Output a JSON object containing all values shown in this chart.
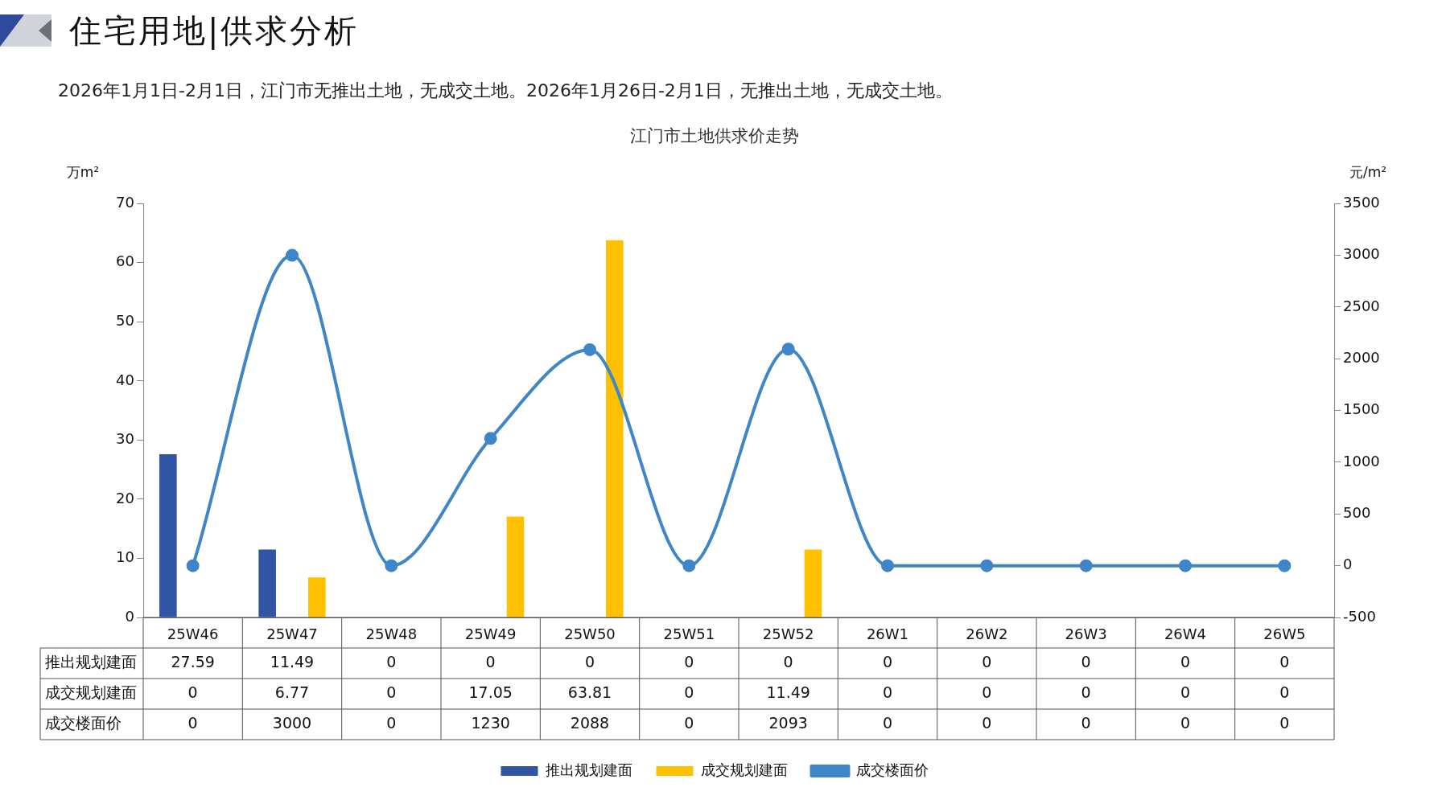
{
  "chart_data": {
    "type": "bar",
    "title": "住宅用地|供求分析",
    "subtitle": "2026年1月1日-2月1日，江门市无推出土地，无成交土地。2026年1月26日-2月1日，无推出土地，无成交土地。",
    "annotations": [
      "江门市土地供求价走势"
    ],
    "ylabel": "万m²",
    "y2label": "元/m²",
    "categories": [
      "25W46",
      "25W47",
      "25W48",
      "25W49",
      "25W50",
      "25W51",
      "25W52",
      "26W1",
      "26W2",
      "26W3",
      "26W4",
      "26W5"
    ],
    "series": [
      {
        "name": "推出规划建面",
        "color": "#2f55a4",
        "values": [
          27.59,
          11.49,
          0,
          0,
          0,
          0,
          0,
          0,
          0,
          0,
          0,
          0
        ]
      },
      {
        "name": "成交规划建面",
        "color": "#ffc000",
        "values": [
          0,
          6.77,
          0,
          17.05,
          63.81,
          0,
          11.49,
          0,
          0,
          0,
          0,
          0
        ]
      },
      {
        "name": "成交楼面价",
        "type": "line",
        "axis": "y2",
        "color": "#3f86c8",
        "marker": "circle",
        "values": [
          0,
          3000,
          0,
          1230,
          2088,
          0,
          2093,
          0,
          0,
          0,
          0,
          0
        ]
      }
    ],
    "ylim": [
      0,
      70
    ],
    "yticks": [
      0,
      10,
      20,
      30,
      40,
      50,
      60,
      70
    ],
    "y2lim": [
      -500,
      3500
    ],
    "y2ticks": [
      -500,
      0,
      500,
      1000,
      1500,
      2000,
      2500,
      3000,
      3500
    ],
    "grid": false,
    "legend": "bottom",
    "data_labels": true
  }
}
